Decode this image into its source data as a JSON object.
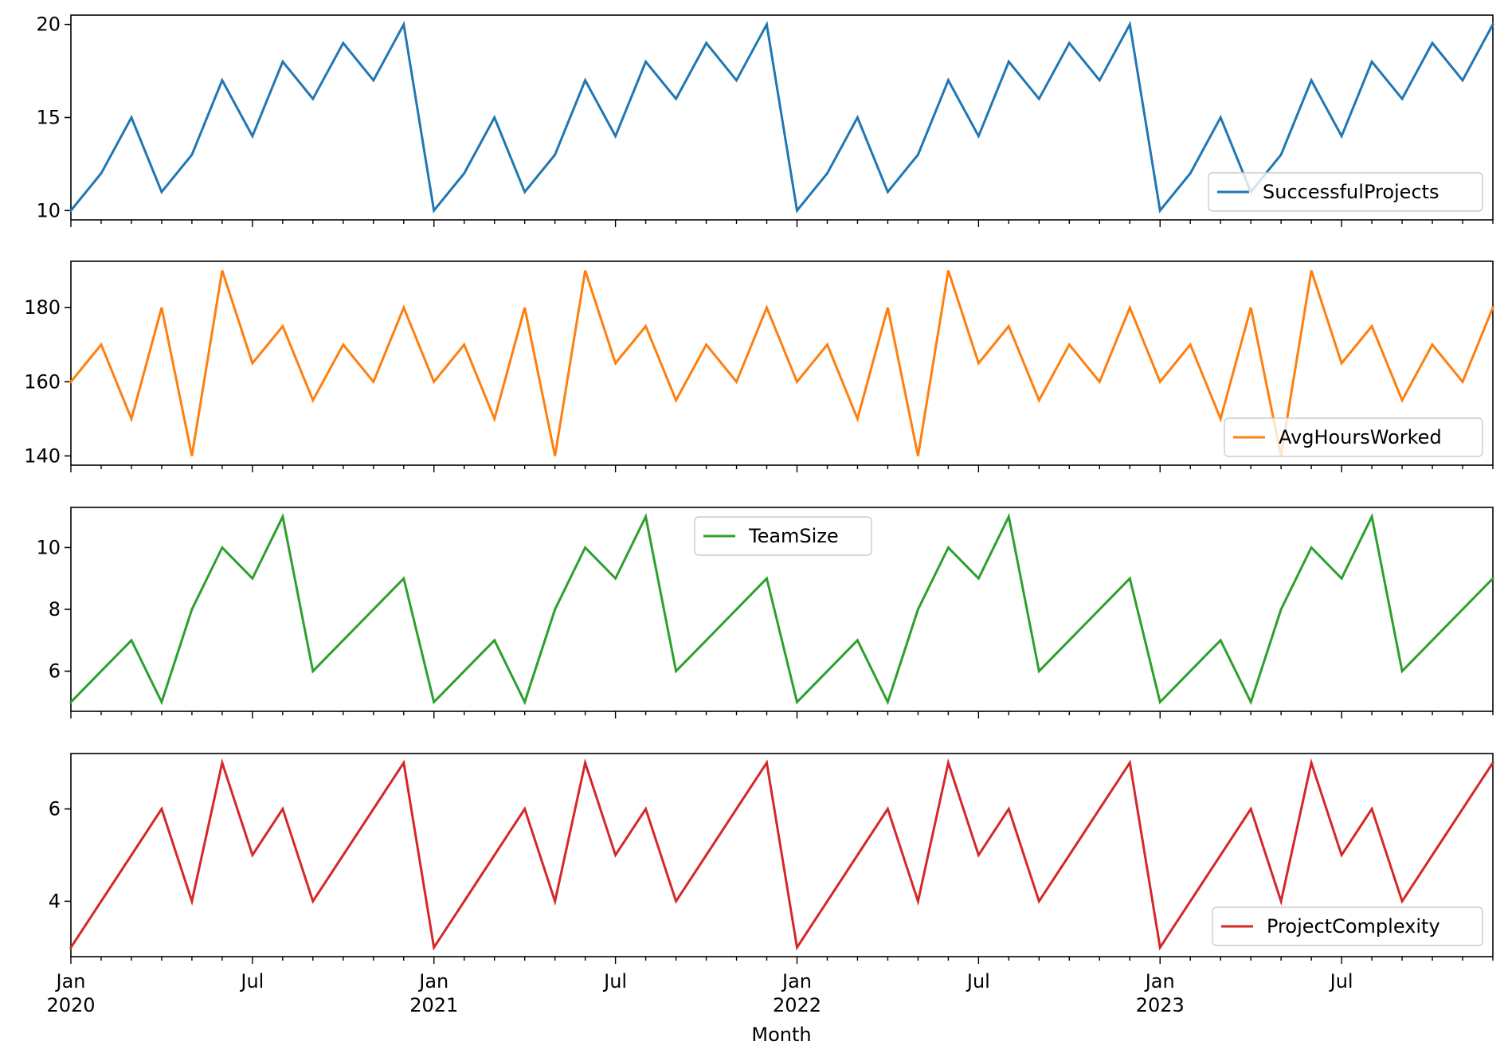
{
  "chart_data": {
    "type": "line",
    "x_start": "2020-01",
    "x_end": "2023-12",
    "x_freq": "monthly",
    "xlabel": "Month",
    "x_major_ticks": [
      {
        "date": "2020-01",
        "label": "Jan",
        "year": "2020"
      },
      {
        "date": "2020-07",
        "label": "Jul",
        "year": ""
      },
      {
        "date": "2021-01",
        "label": "Jan",
        "year": "2021"
      },
      {
        "date": "2021-07",
        "label": "Jul",
        "year": ""
      },
      {
        "date": "2022-01",
        "label": "Jan",
        "year": "2022"
      },
      {
        "date": "2022-07",
        "label": "Jul",
        "year": ""
      },
      {
        "date": "2023-01",
        "label": "Jan",
        "year": "2023"
      },
      {
        "date": "2023-07",
        "label": "Jul",
        "year": ""
      }
    ],
    "series": [
      {
        "name": "SuccessfulProjects",
        "color": "#1f77b4",
        "ylim": [
          9.5,
          20.5
        ],
        "yticks": [
          10,
          15,
          20
        ],
        "legend": "lower right",
        "values": [
          10,
          12,
          15,
          11,
          13,
          17,
          14,
          18,
          16,
          19,
          17,
          20,
          10,
          12,
          15,
          11,
          13,
          17,
          14,
          18,
          16,
          19,
          17,
          20,
          10,
          12,
          15,
          11,
          13,
          17,
          14,
          18,
          16,
          19,
          17,
          20,
          10,
          12,
          15,
          11,
          13,
          17,
          14,
          18,
          16,
          19,
          17,
          20
        ]
      },
      {
        "name": "AvgHoursWorked",
        "color": "#ff7f0e",
        "ylim": [
          137.5,
          192.5
        ],
        "yticks": [
          140,
          160,
          180
        ],
        "legend": "lower right",
        "values": [
          160,
          170,
          150,
          180,
          140,
          190,
          165,
          175,
          155,
          170,
          160,
          180,
          160,
          170,
          150,
          180,
          140,
          190,
          165,
          175,
          155,
          170,
          160,
          180,
          160,
          170,
          150,
          180,
          140,
          190,
          165,
          175,
          155,
          170,
          160,
          180,
          160,
          170,
          150,
          180,
          140,
          190,
          165,
          175,
          155,
          170,
          160,
          180
        ]
      },
      {
        "name": "TeamSize",
        "color": "#2ca02c",
        "ylim": [
          4.7,
          11.3
        ],
        "yticks": [
          6,
          8,
          10
        ],
        "legend": "upper center",
        "values": [
          5,
          6,
          7,
          5,
          8,
          10,
          9,
          11,
          6,
          7,
          8,
          9,
          5,
          6,
          7,
          5,
          8,
          10,
          9,
          11,
          6,
          7,
          8,
          9,
          5,
          6,
          7,
          5,
          8,
          10,
          9,
          11,
          6,
          7,
          8,
          9,
          5,
          6,
          7,
          5,
          8,
          10,
          9,
          11,
          6,
          7,
          8,
          9
        ]
      },
      {
        "name": "ProjectComplexity",
        "color": "#d62728",
        "ylim": [
          2.8,
          7.2
        ],
        "yticks": [
          4,
          6
        ],
        "legend": "lower right",
        "values": [
          3,
          4,
          5,
          6,
          4,
          7,
          5,
          6,
          4,
          5,
          6,
          7,
          3,
          4,
          5,
          6,
          4,
          7,
          5,
          6,
          4,
          5,
          6,
          7,
          3,
          4,
          5,
          6,
          4,
          7,
          5,
          6,
          4,
          5,
          6,
          7,
          3,
          4,
          5,
          6,
          4,
          7,
          5,
          6,
          4,
          5,
          6,
          7
        ]
      }
    ]
  }
}
